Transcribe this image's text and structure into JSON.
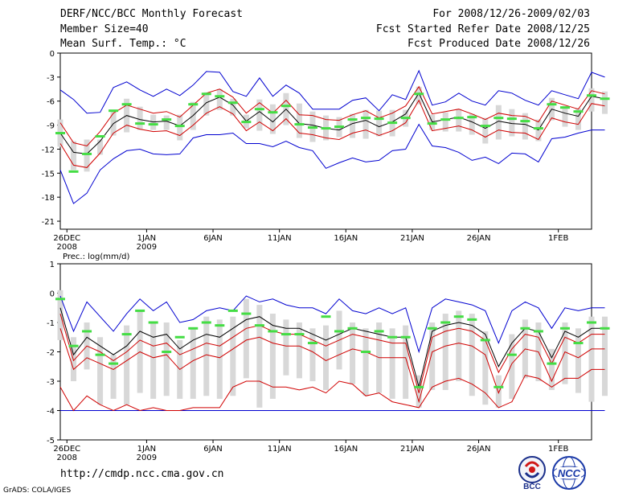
{
  "header": {
    "title": "DERF/NCC/BCC Monthly Forecast",
    "member_size": "Member Size=40",
    "variable": "Mean Surf. Temp.: °C",
    "period": "For 2008/12/26-2009/02/03",
    "started": "Fcst Started Refer Date 2008/12/25",
    "produced": "Fcst Produced Date 2008/12/26"
  },
  "footer": {
    "url": "http://cmdp.ncc.cma.gov.cn",
    "credit": "GrADS: COLA/IGES",
    "logo_bcc": "BCC",
    "logo_ncc": "NCC"
  },
  "chart_data": [
    {
      "type": "line",
      "title": "Mean Surf. Temp.: °C",
      "ylim": [
        -22,
        0
      ],
      "yticks": [
        0,
        -3,
        -6,
        -9,
        -12,
        -15,
        -18,
        -21
      ],
      "ytick_labels": [
        "0",
        "-3",
        "-6",
        "-9",
        "-12",
        "-15",
        "-18",
        "-21"
      ],
      "xlim": [
        0.5,
        40.5
      ],
      "xticks": [
        {
          "day": 1,
          "label": "26DEC",
          "label2": "2008"
        },
        {
          "day": 7,
          "label": "1JAN",
          "label2": "2009"
        },
        {
          "day": 12,
          "label": "6JAN"
        },
        {
          "day": 17,
          "label": "11JAN"
        },
        {
          "day": 22,
          "label": "16JAN"
        },
        {
          "day": 27,
          "label": "21JAN"
        },
        {
          "day": 32,
          "label": "26JAN"
        },
        {
          "day": 38,
          "label": "1FEB"
        }
      ],
      "colors": {
        "mean": "#000000",
        "spread": "#d00000",
        "envelope": "#0000d0",
        "observed": "#44dd44",
        "box": "#d8d8d8"
      },
      "series": [
        {
          "name": "mean",
          "values": [
            -10.0,
            -12.4,
            -12.6,
            -11.0,
            -8.8,
            -7.8,
            -8.3,
            -8.6,
            -8.5,
            -9.1,
            -7.8,
            -6.2,
            -5.5,
            -6.5,
            -8.5,
            -7.3,
            -8.6,
            -7.0,
            -8.8,
            -9.0,
            -9.4,
            -9.6,
            -8.8,
            -8.4,
            -9.2,
            -8.6,
            -7.6,
            -5.0,
            -8.6,
            -8.3,
            -8.0,
            -8.6,
            -9.4,
            -8.5,
            -8.8,
            -8.9,
            -9.6,
            -7.0,
            -7.5,
            -7.9,
            -5.4,
            -5.7
          ]
        },
        {
          "name": "upper",
          "values": [
            -8.7,
            -11.2,
            -11.6,
            -9.8,
            -7.5,
            -6.5,
            -7.0,
            -7.5,
            -7.3,
            -8.0,
            -6.5,
            -5.0,
            -4.5,
            -5.5,
            -7.5,
            -6.2,
            -7.5,
            -5.9,
            -7.7,
            -7.8,
            -8.3,
            -8.4,
            -7.7,
            -7.2,
            -8.1,
            -7.5,
            -6.6,
            -4.2,
            -7.6,
            -7.3,
            -7.0,
            -7.6,
            -8.3,
            -7.5,
            -7.8,
            -7.9,
            -8.6,
            -6.0,
            -6.5,
            -7.0,
            -4.7,
            -5.1
          ]
        },
        {
          "name": "lower",
          "values": [
            -11.3,
            -14.0,
            -14.3,
            -12.5,
            -10.0,
            -9.0,
            -9.5,
            -9.8,
            -9.7,
            -10.3,
            -9.0,
            -7.5,
            -6.7,
            -7.6,
            -9.7,
            -8.6,
            -9.7,
            -8.2,
            -10.0,
            -10.2,
            -10.6,
            -10.8,
            -10.0,
            -9.6,
            -10.3,
            -9.7,
            -8.7,
            -5.9,
            -9.7,
            -9.4,
            -9.1,
            -9.6,
            -10.5,
            -9.6,
            -9.9,
            -10.0,
            -10.8,
            -8.1,
            -8.6,
            -8.9,
            -6.3,
            -6.6
          ]
        },
        {
          "name": "max",
          "values": [
            -4.6,
            -5.8,
            -7.5,
            -7.4,
            -4.3,
            -3.6,
            -4.6,
            -5.4,
            -4.5,
            -5.3,
            -4.0,
            -2.3,
            -2.4,
            -4.8,
            -5.4,
            -3.1,
            -5.4,
            -4.0,
            -5.0,
            -7.0,
            -7.0,
            -7.0,
            -5.9,
            -5.6,
            -7.2,
            -5.2,
            -5.8,
            -2.2,
            -6.5,
            -6.1,
            -5.0,
            -6.0,
            -6.5,
            -4.7,
            -5.0,
            -5.9,
            -6.5,
            -4.7,
            -5.2,
            -5.7,
            -2.4,
            -3.0
          ]
        },
        {
          "name": "min",
          "values": [
            -14.6,
            -18.8,
            -17.5,
            -14.6,
            -13.2,
            -12.2,
            -12.0,
            -12.6,
            -12.7,
            -12.6,
            -10.6,
            -10.2,
            -10.2,
            -10.0,
            -11.3,
            -11.3,
            -11.7,
            -11.0,
            -11.8,
            -12.2,
            -14.4,
            -13.7,
            -13.1,
            -13.6,
            -13.4,
            -12.2,
            -12.0,
            -8.9,
            -11.6,
            -11.8,
            -12.4,
            -13.4,
            -13.0,
            -13.8,
            -12.5,
            -12.6,
            -13.6,
            -10.7,
            -10.5,
            -10.0,
            -9.6,
            -9.6
          ]
        },
        {
          "name": "box_top",
          "values": [
            -8.3,
            -11.0,
            -10.8,
            -10.8,
            -7.3,
            -5.7,
            -6.7,
            -7.7,
            -7.8,
            -7.7,
            -6.1,
            -4.9,
            -4.5,
            -5.7,
            -7.7,
            -5.8,
            -6.4,
            -5.0,
            -6.3,
            -7.3,
            -7.8,
            -8.0,
            -7.6,
            -7.1,
            -7.2,
            -7.1,
            -7.1,
            -4.2,
            -7.7,
            -7.4,
            -7.0,
            -7.6,
            -8.1,
            -6.5,
            -7.0,
            -7.5,
            -8.3,
            -5.6,
            -6.6,
            -6.9,
            -4.4,
            -4.8
          ]
        },
        {
          "name": "box_bottom",
          "values": [
            -11.7,
            -14.6,
            -14.8,
            -12.7,
            -10.3,
            -9.9,
            -9.6,
            -9.6,
            -9.6,
            -10.9,
            -9.6,
            -7.8,
            -7.1,
            -7.8,
            -9.4,
            -9.7,
            -10.1,
            -9.0,
            -10.6,
            -11.1,
            -10.9,
            -10.5,
            -10.6,
            -10.7,
            -10.4,
            -10.4,
            -9.2,
            -6.4,
            -9.6,
            -9.8,
            -9.8,
            -10.2,
            -11.3,
            -10.8,
            -10.4,
            -10.8,
            -11.0,
            -8.4,
            -9.2,
            -9.6,
            -7.3,
            -7.6
          ]
        },
        {
          "name": "observed",
          "values": [
            -10.0,
            -14.8,
            -12.6,
            -10.4,
            -7.2,
            -6.4,
            -8.8,
            -8.9,
            -8.3,
            -9.1,
            -6.4,
            -5.1,
            -5.4,
            -6.2,
            -8.6,
            -7.0,
            -7.4,
            -6.6,
            -8.9,
            -9.3,
            -9.4,
            -9.2,
            -8.3,
            -8.1,
            -8.2,
            -8.7,
            -8.1,
            -5.1,
            -8.8,
            -8.3,
            -8.1,
            -8.0,
            -9.1,
            -8.1,
            -8.2,
            -8.5,
            -9.4,
            -6.4,
            -6.8,
            -7.3,
            -5.3,
            -5.7
          ]
        }
      ]
    },
    {
      "type": "line",
      "title": "Prec.: log(mm/d)",
      "ylim": [
        -5,
        1
      ],
      "yticks": [
        1,
        0,
        -1,
        -2,
        -3,
        -4,
        -5
      ],
      "ytick_labels": [
        "1",
        "0",
        "-1",
        "-2",
        "-3",
        "-4",
        "-5"
      ],
      "xlim": [
        0.5,
        40.5
      ],
      "xticks": [
        {
          "day": 1,
          "label": "26DEC",
          "label2": "2008"
        },
        {
          "day": 7,
          "label": "1JAN",
          "label2": "2009"
        },
        {
          "day": 12,
          "label": "6JAN"
        },
        {
          "day": 17,
          "label": "11JAN"
        },
        {
          "day": 22,
          "label": "16JAN"
        },
        {
          "day": 27,
          "label": "21JAN"
        },
        {
          "day": 32,
          "label": "26JAN"
        },
        {
          "day": 38,
          "label": "1FEB"
        }
      ],
      "colors": {
        "mean": "#000000",
        "spread": "#d00000",
        "envelope": "#0000d0",
        "observed": "#44dd44",
        "box": "#d8d8d8"
      },
      "series": [
        {
          "name": "mean",
          "values": [
            -0.5,
            -2.1,
            -1.5,
            -1.8,
            -2.1,
            -1.8,
            -1.3,
            -1.5,
            -1.4,
            -1.9,
            -1.6,
            -1.4,
            -1.5,
            -1.2,
            -0.9,
            -0.8,
            -1.1,
            -1.2,
            -1.2,
            -1.4,
            -1.6,
            -1.4,
            -1.2,
            -1.3,
            -1.4,
            -1.5,
            -1.5,
            -3.2,
            -1.3,
            -1.1,
            -1.0,
            -1.1,
            -1.4,
            -2.5,
            -1.7,
            -1.2,
            -1.3,
            -2.2,
            -1.3,
            -1.5,
            -1.2,
            -1.2
          ]
        },
        {
          "name": "upper",
          "values": [
            -0.7,
            -2.3,
            -1.8,
            -2.0,
            -2.3,
            -2.0,
            -1.6,
            -1.8,
            -1.7,
            -2.1,
            -1.9,
            -1.7,
            -1.8,
            -1.5,
            -1.2,
            -1.1,
            -1.3,
            -1.4,
            -1.4,
            -1.6,
            -1.8,
            -1.6,
            -1.4,
            -1.5,
            -1.6,
            -1.7,
            -1.7,
            -3.4,
            -1.5,
            -1.3,
            -1.2,
            -1.3,
            -1.6,
            -2.7,
            -1.9,
            -1.4,
            -1.5,
            -2.4,
            -1.5,
            -1.7,
            -1.4,
            -1.4
          ]
        },
        {
          "name": "lower",
          "values": [
            -1.2,
            -2.6,
            -2.2,
            -2.4,
            -2.6,
            -2.3,
            -2.0,
            -2.2,
            -2.1,
            -2.6,
            -2.3,
            -2.1,
            -2.2,
            -1.9,
            -1.6,
            -1.5,
            -1.7,
            -1.8,
            -1.8,
            -2.0,
            -2.3,
            -2.1,
            -1.9,
            -2.0,
            -2.2,
            -2.2,
            -2.2,
            -3.7,
            -2.0,
            -1.8,
            -1.7,
            -1.8,
            -2.1,
            -3.4,
            -2.4,
            -1.9,
            -2.0,
            -3.0,
            -2.0,
            -2.2,
            -1.9,
            -1.9
          ]
        },
        {
          "name": "floor",
          "values": [
            -3.2,
            -4.0,
            -3.5,
            -3.8,
            -4.0,
            -3.8,
            -4.0,
            -3.9,
            -4.0,
            -4.0,
            -3.9,
            -3.9,
            -3.9,
            -3.2,
            -3.0,
            -3.0,
            -3.2,
            -3.2,
            -3.3,
            -3.2,
            -3.4,
            -3.0,
            -3.1,
            -3.5,
            -3.4,
            -3.7,
            -3.8,
            -3.9,
            -3.2,
            -3.0,
            -2.9,
            -3.1,
            -3.4,
            -3.9,
            -3.7,
            -2.8,
            -2.9,
            -3.2,
            -2.9,
            -2.9,
            -2.6,
            -2.6
          ]
        },
        {
          "name": "max",
          "values": [
            -0.1,
            -1.3,
            -0.3,
            -0.8,
            -1.3,
            -0.7,
            -0.2,
            -0.6,
            -0.3,
            -1.0,
            -0.9,
            -0.6,
            -0.5,
            -0.6,
            -0.1,
            -0.3,
            -0.2,
            -0.4,
            -0.5,
            -0.5,
            -0.7,
            -0.2,
            -0.6,
            -0.7,
            -0.5,
            -0.7,
            -0.5,
            -2.0,
            -0.5,
            -0.2,
            -0.3,
            -0.4,
            -0.6,
            -1.7,
            -0.6,
            -0.3,
            -0.5,
            -1.2,
            -0.5,
            -0.6,
            -0.5,
            -0.5
          ]
        },
        {
          "name": "min",
          "values": [
            -4.0,
            -4.0,
            -4.0,
            -4.0,
            -4.0,
            -4.0,
            -4.0,
            -4.0,
            -4.0,
            -4.0,
            -4.0,
            -4.0,
            -4.0,
            -4.0,
            -4.0,
            -4.0,
            -4.0,
            -4.0,
            -4.0,
            -4.0,
            -4.0,
            -4.0,
            -4.0,
            -4.0,
            -4.0,
            -4.0,
            -4.0,
            -4.0,
            -4.0,
            -4.0,
            -4.0,
            -4.0,
            -4.0,
            -4.0,
            -4.0,
            -4.0,
            -4.0,
            -4.0,
            -4.0,
            -4.0,
            -4.0,
            -4.0
          ]
        },
        {
          "name": "box_top",
          "values": [
            0.1,
            -1.5,
            -1.0,
            -1.5,
            -2.1,
            -1.1,
            -0.6,
            -1.0,
            -1.0,
            -1.6,
            -1.2,
            -0.8,
            -0.9,
            -0.8,
            -0.2,
            -0.4,
            -0.7,
            -0.9,
            -1.0,
            -1.2,
            -1.1,
            -0.6,
            -1.0,
            -1.2,
            -1.0,
            -1.2,
            -1.1,
            -2.8,
            -1.0,
            -0.7,
            -0.6,
            -0.7,
            -1.3,
            -2.8,
            -1.4,
            -0.9,
            -1.0,
            -1.9,
            -1.0,
            -1.2,
            -0.8,
            -0.8
          ]
        },
        {
          "name": "box_bottom",
          "values": [
            -1.6,
            -3.0,
            -2.6,
            -3.8,
            -3.6,
            -3.8,
            -3.4,
            -3.6,
            -3.5,
            -3.6,
            -3.6,
            -3.5,
            -3.6,
            -3.5,
            -2.9,
            -3.9,
            -3.6,
            -2.8,
            -2.9,
            -3.0,
            -3.3,
            -2.6,
            -3.1,
            -3.5,
            -3.4,
            -3.6,
            -3.6,
            -3.9,
            -3.3,
            -3.3,
            -3.0,
            -3.5,
            -3.8,
            -3.9,
            -3.6,
            -2.9,
            -3.0,
            -3.3,
            -3.1,
            -3.4,
            -3.7,
            -3.5
          ]
        },
        {
          "name": "observed",
          "values": [
            -0.2,
            -1.8,
            -1.3,
            -2.1,
            -2.4,
            -1.4,
            -0.6,
            -1.0,
            -2.0,
            -1.5,
            -1.2,
            -1.0,
            -1.1,
            -0.6,
            -0.7,
            -1.1,
            -1.3,
            -1.4,
            -1.4,
            -1.7,
            -0.8,
            -1.3,
            -1.2,
            -2.0,
            -1.3,
            -1.5,
            -1.5,
            -3.2,
            -1.2,
            -1.0,
            -0.8,
            -0.9,
            -1.6,
            -3.2,
            -2.1,
            -1.2,
            -1.3,
            -2.4,
            -1.2,
            -1.7,
            -1.0,
            -1.2
          ]
        }
      ]
    }
  ]
}
